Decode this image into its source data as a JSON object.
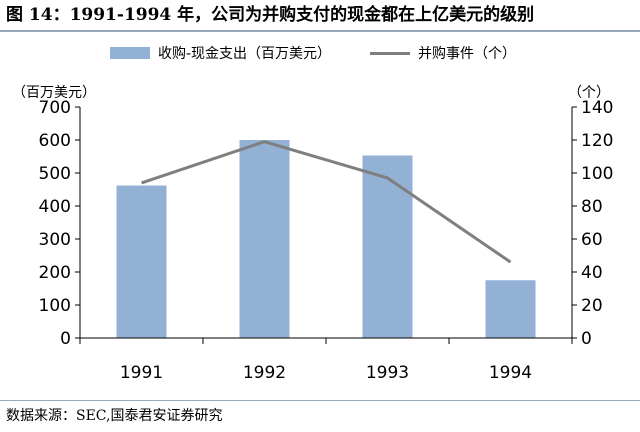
{
  "title": "图 14：1991-1994 年，公司为并购支付的现金都在上亿美元的级别",
  "source": "数据来源：SEC,国泰君安证券研究",
  "legend": {
    "bar_label": "收购-现金支出（百万美元）",
    "line_label": "并购事件（个）"
  },
  "units": {
    "left": "（百万美元）",
    "right": "（个）"
  },
  "chart_data": {
    "type": "bar",
    "categories": [
      "1991",
      "1992",
      "1993",
      "1994"
    ],
    "series": [
      {
        "name": "收购-现金支出（百万美元）",
        "type": "bar",
        "axis": "left",
        "values": [
          462,
          600,
          553,
          175
        ],
        "color": "#92b1d5"
      },
      {
        "name": "并购事件（个）",
        "type": "line",
        "axis": "right",
        "values": [
          94,
          119,
          97,
          46
        ],
        "color": "#7f7f7f"
      }
    ],
    "y_left": {
      "min": 0,
      "max": 700,
      "ticks": [
        0,
        100,
        200,
        300,
        400,
        500,
        600,
        700
      ]
    },
    "y_right": {
      "min": 0,
      "max": 140,
      "ticks": [
        0,
        20,
        40,
        60,
        80,
        100,
        120,
        140
      ]
    },
    "grid": false,
    "legend_position": "top"
  }
}
